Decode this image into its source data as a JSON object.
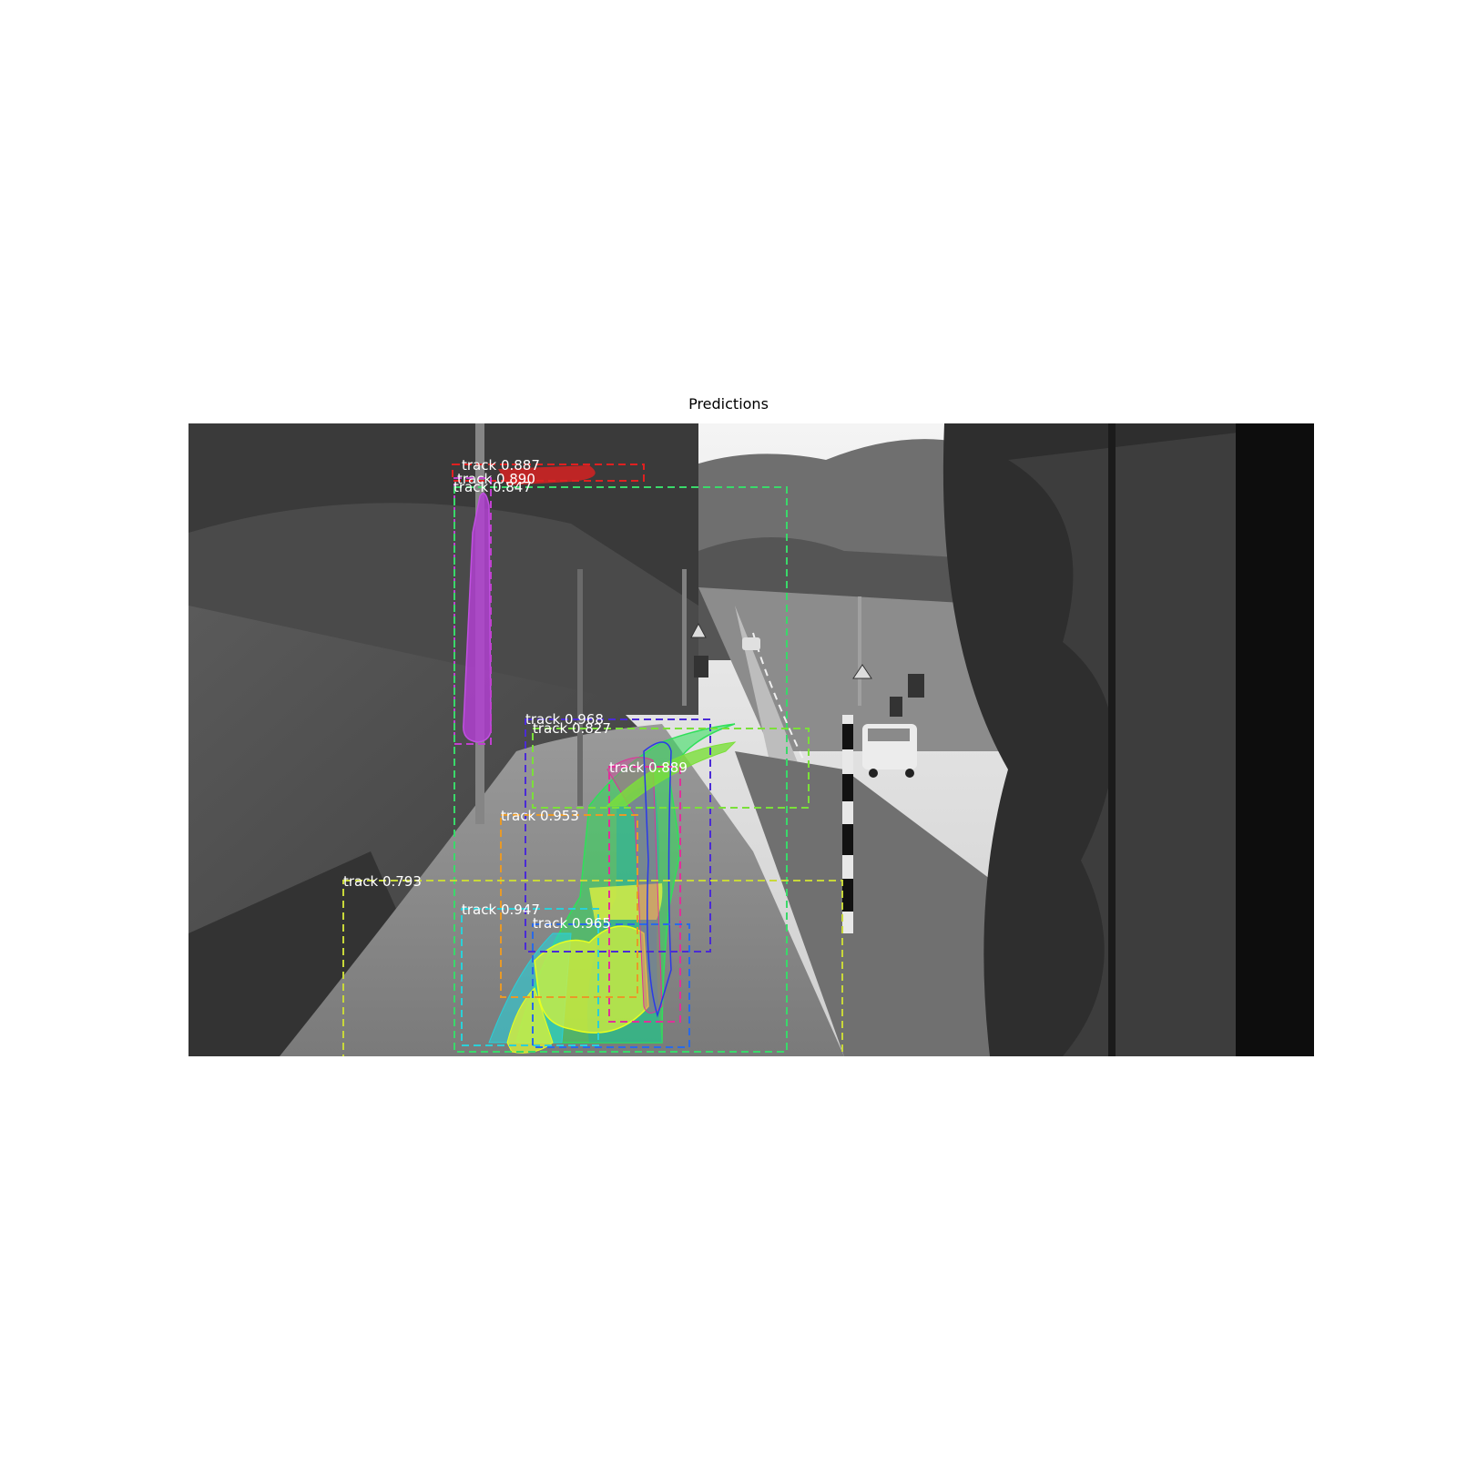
{
  "figure": {
    "title": "Predictions"
  },
  "detections": [
    {
      "label": "track 0.887",
      "color": "#e02020"
    },
    {
      "label": "track 0.890",
      "color": "#ff4da6"
    },
    {
      "label": "track 0.847",
      "color": "#3ad96a"
    },
    {
      "label": "track 0.968",
      "color": "#4b2bd6"
    },
    {
      "label": "track 0.827",
      "color": "#7be03a"
    },
    {
      "label": "track 0.889",
      "color": "#e0309a"
    },
    {
      "label": "track 0.953",
      "color": "#e89a28"
    },
    {
      "label": "track 0.793",
      "color": "#c8d83a"
    },
    {
      "label": "track 0.947",
      "color": "#2ad0d8"
    },
    {
      "label": "track 0.965",
      "color": "#2a6ae8"
    }
  ]
}
